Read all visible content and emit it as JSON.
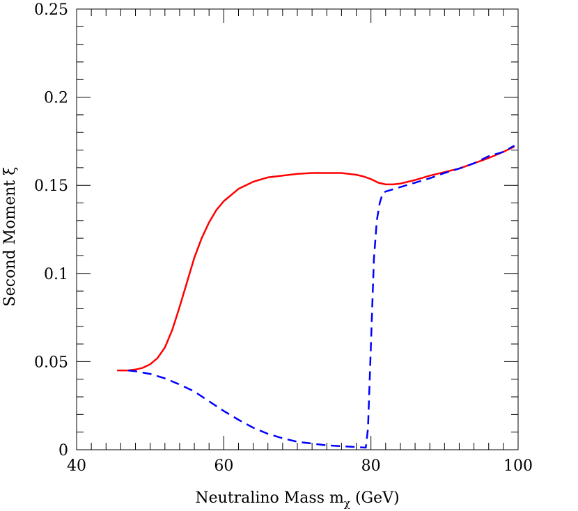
{
  "chart_data": {
    "type": "line",
    "title": "",
    "xlabel": "Neutralino Mass m",
    "xlabel_subscript": "χ",
    "xlabel_unit": "(GeV)",
    "ylabel": "Second Moment ξ",
    "xlim": [
      40,
      100
    ],
    "ylim": [
      0,
      0.25
    ],
    "xticks": [
      40,
      60,
      80,
      100
    ],
    "xtick_labels": [
      "40",
      "60",
      "80",
      "100"
    ],
    "yticks": [
      0,
      0.05,
      0.1,
      0.15,
      0.2,
      0.25
    ],
    "ytick_labels": [
      "0",
      "0.05",
      "0.1",
      "0.15",
      "0.2",
      "0.25"
    ],
    "x_minor_step": 2,
    "y_minor_step": 0.01,
    "grid": false,
    "legend": false,
    "series": [
      {
        "color": "#ff0000",
        "style": "solid",
        "x": [
          45.5,
          47,
          48,
          49,
          50,
          51,
          52,
          53,
          54,
          55,
          56,
          57,
          58,
          59,
          60,
          62,
          64,
          66,
          68,
          70,
          72,
          74,
          76,
          78,
          79,
          80,
          81,
          82,
          83,
          84,
          86,
          88,
          90,
          92,
          94,
          96,
          98,
          99.5
        ],
        "y": [
          0.045,
          0.045,
          0.0455,
          0.0465,
          0.0485,
          0.052,
          0.058,
          0.068,
          0.081,
          0.095,
          0.109,
          0.12,
          0.129,
          0.136,
          0.141,
          0.148,
          0.152,
          0.1545,
          0.1555,
          0.1565,
          0.157,
          0.157,
          0.157,
          0.156,
          0.155,
          0.1535,
          0.1515,
          0.1505,
          0.1505,
          0.151,
          0.153,
          0.1555,
          0.1575,
          0.1595,
          0.1625,
          0.1655,
          0.169,
          0.172
        ]
      },
      {
        "color": "#0000ff",
        "style": "dashed",
        "x": [
          47,
          48,
          50,
          52,
          54,
          56,
          58,
          60,
          62,
          64,
          66,
          68,
          70,
          72,
          74,
          76,
          78,
          79.3,
          79.6,
          80.0,
          80.4,
          80.8,
          81.2,
          81.6,
          82,
          84,
          86,
          88,
          90,
          92,
          94,
          96,
          98,
          99.5
        ],
        "y": [
          0.045,
          0.0445,
          0.043,
          0.0405,
          0.037,
          0.033,
          0.0275,
          0.022,
          0.017,
          0.0125,
          0.009,
          0.0065,
          0.0045,
          0.0035,
          0.0025,
          0.002,
          0.0015,
          0.0012,
          0.012,
          0.06,
          0.108,
          0.13,
          0.14,
          0.1455,
          0.1465,
          0.149,
          0.1515,
          0.154,
          0.157,
          0.1595,
          0.1625,
          0.1665,
          0.169,
          0.1725
        ]
      }
    ]
  }
}
